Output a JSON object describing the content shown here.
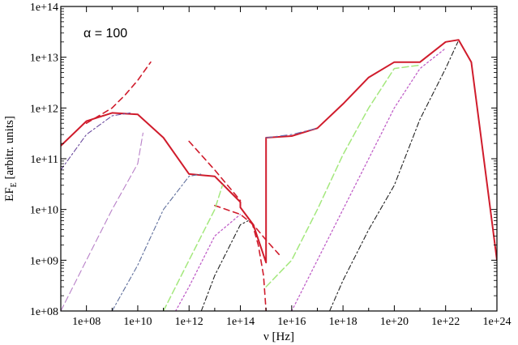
{
  "chart_data": {
    "type": "line",
    "title": "",
    "annotation": "α = 100",
    "xlabel": "ν [Hz]",
    "ylabel_main": "EF",
    "ylabel_sub": "E",
    "ylabel_rest": " [arbitr. units]",
    "x_scale": "log",
    "y_scale": "log",
    "xlim": [
      10000000.0,
      1e+24
    ],
    "ylim": [
      100000000.0,
      100000000000000.0
    ],
    "x_ticks": [
      {
        "value": 100000000.0,
        "label": "1e+08"
      },
      {
        "value": 10000000000.0,
        "label": "1e+10"
      },
      {
        "value": 1000000000000.0,
        "label": "1e+12"
      },
      {
        "value": 100000000000000.0,
        "label": "1e+14"
      },
      {
        "value": 1e+16,
        "label": "1e+16"
      },
      {
        "value": 1e+18,
        "label": "1e+18"
      },
      {
        "value": 1e+20,
        "label": "1e+20"
      },
      {
        "value": 1e+22,
        "label": "1e+22"
      },
      {
        "value": 1e+24,
        "label": "1e+24"
      }
    ],
    "y_ticks": [
      {
        "value": 100000000.0,
        "label": "1e+08"
      },
      {
        "value": 1000000000.0,
        "label": "1e+09"
      },
      {
        "value": 10000000000.0,
        "label": "1e+10"
      },
      {
        "value": 100000000000.0,
        "label": "1e+11"
      },
      {
        "value": 1000000000000.0,
        "label": "1e+12"
      },
      {
        "value": 10000000000000.0,
        "label": "1e+13"
      },
      {
        "value": 100000000000000.0,
        "label": "1e+14"
      }
    ],
    "grid": false,
    "legend": "none",
    "series": [
      {
        "color": "#d01c2c",
        "dash": "",
        "width": 2,
        "x": [
          10000000.0,
          100000000.0,
          1000000000.0,
          10000000000.0,
          100000000000.0,
          1000000000000.0,
          10000000000000.0,
          100000000000000.0,
          100000000000000.0,
          320000000000000.0,
          1000000000000000.0,
          1000000000000000.0,
          1e+16,
          1e+17,
          1e+18,
          1e+19,
          1e+20,
          1e+21,
          1e+22,
          3.2e+22,
          1e+23,
          1e+24
        ],
        "y": [
          180000000000.0,
          550000000000.0,
          800000000000.0,
          750000000000.0,
          260000000000.0,
          50000000000.0,
          45000000000.0,
          14000000000.0,
          11000000000.0,
          5000000000.0,
          900000000.0,
          260000000000.0,
          280000000000.0,
          400000000000.0,
          1200000000000.0,
          4000000000000.0,
          8000000000000.0,
          8000000000000.0,
          20000000000000.0,
          22000000000000.0,
          8000000000000.0,
          1000000000.0
        ]
      },
      {
        "color": "#d01c2c",
        "dash": "7,5",
        "width": 1.6,
        "x": [
          100000000.0,
          1000000000.0,
          3200000000.0,
          10000000000.0,
          32000000000.0
        ],
        "y": [
          500000000000.0,
          1000000000000.0,
          1800000000000.0,
          3500000000000.0,
          8000000000000.0
        ]
      },
      {
        "color": "#d01c2c",
        "dash": "7,5",
        "width": 1.6,
        "x": [
          1000000000000.0,
          10000000000000.0,
          100000000000000.0
        ],
        "y": [
          220000000000.0,
          60000000000.0,
          15000000000.0
        ]
      },
      {
        "color": "#d01c2c",
        "dash": "7,5",
        "width": 1.6,
        "x": [
          10000000000000.0,
          100000000000000.0,
          320000000000000.0,
          1000000000000000.0,
          3200000000000000.0
        ],
        "y": [
          12000000000.0,
          8000000000.0,
          5000000000.0,
          2500000000.0,
          1300000000.0
        ]
      },
      {
        "color": "#d01c2c",
        "dash": "7,5",
        "width": 1.6,
        "x": [
          160000000000000.0,
          300000000000000.0,
          500000000000000.0,
          800000000000000.0,
          1000000000000000.0
        ],
        "y": [
          8000000000.0,
          5000000000.0,
          2000000000.0,
          500000000.0,
          100000000.0
        ]
      },
      {
        "color": "#6b4a9e",
        "dash": "6,3,2,3",
        "width": 1.1,
        "x": [
          10000000.0,
          100000000.0,
          1000000000.0,
          5000000000.0
        ],
        "y": [
          60000000000.0,
          300000000000.0,
          700000000000.0,
          800000000000.0
        ]
      },
      {
        "color": "#b880c8",
        "dash": "8,4",
        "width": 1.1,
        "x": [
          10000000.0,
          100000000.0,
          1000000000.0,
          10000000000.0,
          16000000000.0
        ],
        "y": [
          100000000.0,
          1000000000.0,
          10000000000.0,
          80000000000.0,
          320000000000.0
        ]
      },
      {
        "color": "#5f6f9c",
        "dash": "6,3,2,3",
        "width": 1.1,
        "x": [
          1000000000.0,
          10000000000.0,
          100000000000.0,
          1000000000000.0,
          3000000000000.0
        ],
        "y": [
          100000000.0,
          800000000.0,
          10000000000.0,
          45000000000.0,
          50000000000.0
        ]
      },
      {
        "color": "#a4e87d",
        "dash": "8,4",
        "width": 1.5,
        "x": [
          100000000000.0,
          1000000000000.0,
          10000000000000.0,
          20000000000000.0
        ],
        "y": [
          100000000.0,
          1000000000.0,
          10000000000.0,
          30000000000.0
        ]
      },
      {
        "color": "#c060c8",
        "dash": "2,3",
        "width": 1.3,
        "x": [
          300000000000.0,
          1000000000000.0,
          10000000000000.0,
          100000000000000.0
        ],
        "y": [
          100000000.0,
          300000000.0,
          3000000000.0,
          8000000000.0
        ]
      },
      {
        "color": "#222222",
        "dash": "6,3,2,3",
        "width": 1.1,
        "x": [
          3000000000000.0,
          10000000000000.0,
          100000000000000.0,
          200000000000000.0
        ],
        "y": [
          100000000.0,
          500000000.0,
          5000000000.0,
          6000000000.0
        ]
      },
      {
        "color": "#6b6cb0",
        "dash": "8,4,2,4",
        "width": 1.1,
        "x": [
          1000000000000000.0,
          1e+16,
          1e+17
        ],
        "y": [
          260000000000.0,
          300000000000.0,
          400000000000.0
        ]
      },
      {
        "color": "#a4e87d",
        "dash": "8,4",
        "width": 1.5,
        "x": [
          1000000000000000.0,
          1e+16,
          1e+17,
          1e+18,
          1e+19,
          1e+20,
          1e+21
        ],
        "y": [
          300000000.0,
          1000000000.0,
          10000000000.0,
          120000000000.0,
          1000000000000.0,
          6000000000000.0,
          7000000000000.0
        ]
      },
      {
        "color": "#c060c8",
        "dash": "2,3",
        "width": 1.3,
        "x": [
          1e+16,
          1e+17,
          1e+18,
          1e+19,
          1e+20,
          1e+21,
          1e+22
        ],
        "y": [
          100000000.0,
          1000000000.0,
          10000000000.0,
          100000000000.0,
          1000000000000.0,
          6000000000000.0,
          15000000000000.0
        ]
      },
      {
        "color": "#222222",
        "dash": "6,3,2,3",
        "width": 1.1,
        "x": [
          3e+17,
          1e+18,
          1e+19,
          1e+20,
          1e+21,
          1e+22,
          3e+22
        ],
        "y": [
          100000000.0,
          400000000.0,
          4000000000.0,
          30000000000.0,
          600000000000.0,
          6000000000000.0,
          20000000000000.0
        ]
      }
    ]
  }
}
